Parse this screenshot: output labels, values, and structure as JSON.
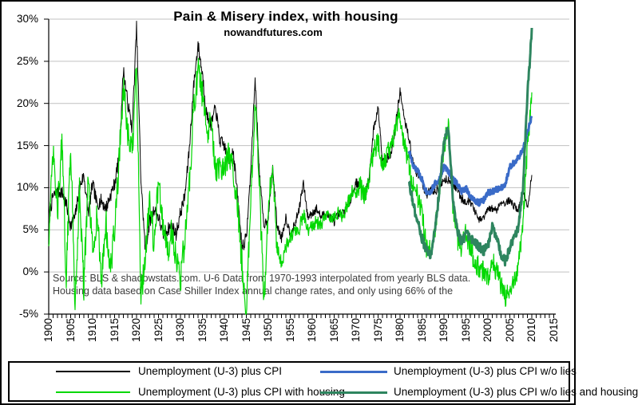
{
  "chart_data": {
    "type": "line",
    "title": "Pain & Misery index, with housing",
    "subtitle": "nowandfutures.com",
    "source_note": {
      "line1": "Source: BLS & shadowstats.com. U-6 Data from 1970-1993 interpolated from yearly BLS data.",
      "line2": "Housing data based on Case Shiller Index annual change rates, and only using 66% of the"
    },
    "x_axis": {
      "min_year": 1900,
      "max_year": 2015,
      "minor_tick_interval_years": 1,
      "label_interval_years": 5,
      "label_rotation_deg": -90,
      "tick_labels": [
        "1900",
        "1905",
        "1910",
        "1915",
        "1920",
        "1925",
        "1930",
        "1935",
        "1940",
        "1945",
        "1950",
        "1955",
        "1960",
        "1965",
        "1970",
        "1975",
        "1980",
        "1985",
        "1990",
        "1995",
        "2000",
        "2005",
        "2010",
        "2015"
      ]
    },
    "y_axis": {
      "unit": "%",
      "min": -5,
      "max": 30,
      "tick_labels": [
        "30%",
        "25%",
        "20%",
        "15%",
        "10%",
        "5%",
        "0%",
        "-5%"
      ],
      "tick_values": [
        30,
        25,
        20,
        15,
        10,
        5,
        0,
        -5
      ]
    },
    "grid": {
      "show": true,
      "color": "#c0c0c0"
    },
    "legend_position": "bottom",
    "series": [
      {
        "name": "Unemployment (U-3) plus CPI",
        "color": "#000000",
        "line_width": 1,
        "start_year": 1900,
        "interval_years": 1,
        "values": [
          6.5,
          9,
          9.5,
          9.5,
          8,
          5.5,
          6.5,
          10,
          11.5,
          7,
          10.5,
          8,
          8.5,
          7.5,
          9,
          10.5,
          13.5,
          24,
          20,
          17,
          29,
          11,
          2.5,
          6,
          7.5,
          6.5,
          4.5,
          5,
          5.5,
          4.5,
          7,
          9,
          14.5,
          22,
          27,
          23.5,
          18.5,
          17.5,
          19.5,
          15.5,
          15,
          13,
          14.5,
          9,
          3,
          4,
          12,
          23,
          11.5,
          5.5,
          6.5,
          12.5,
          5.5,
          4,
          6.5,
          4.5,
          5.5,
          7.5,
          10.5,
          6.5,
          7,
          7.5,
          6.5,
          7,
          6.5,
          6,
          6.8,
          7,
          7.8,
          9,
          10.6,
          10.3,
          8.8,
          11.5,
          17,
          19.5,
          13.5,
          13.5,
          14,
          17.5,
          21.5,
          18,
          16,
          12.8,
          11.5,
          10.8,
          9,
          9.8,
          9.6,
          10.1,
          11,
          11,
          10.5,
          9.9,
          8.7,
          8.4,
          8.4,
          7.2,
          6.1,
          6.4,
          7.4,
          7.5,
          7.4,
          8.3,
          8.2,
          8.5,
          7.8,
          7.4,
          9.8,
          7.5,
          11.5
        ]
      },
      {
        "name": "Unemployment (U-3) plus CPI with housing",
        "color": "#00d800",
        "line_width": 1.2,
        "start_year": 1900,
        "interval_years": 1,
        "values": [
          4,
          14,
          7,
          15.5,
          -1,
          15.5,
          -4,
          10,
          -2,
          11,
          2,
          7,
          -1,
          6,
          0,
          5,
          13,
          22,
          16,
          14,
          24,
          -3,
          2,
          9,
          3,
          11,
          6,
          2,
          5,
          2,
          -1,
          4,
          10,
          19,
          24,
          21,
          16,
          18,
          12,
          12,
          12,
          14,
          12,
          8,
          1,
          -4.5,
          8,
          20,
          10,
          -4,
          8,
          12,
          3,
          1,
          3,
          4,
          5,
          5,
          7,
          5,
          5.5,
          6,
          5.5,
          6.5,
          6.5,
          6.5,
          7,
          6.5,
          8,
          9.5,
          9.5,
          10,
          9,
          11.5,
          14.5,
          15.5,
          12.5,
          14,
          15,
          17,
          18.5,
          15,
          13,
          10,
          9,
          7,
          3,
          2.5,
          5,
          10,
          15,
          17.5,
          8,
          4,
          3,
          4.5,
          3,
          1,
          0.5,
          0,
          -0.5,
          1.5,
          0,
          -1.5,
          -3,
          -2.5,
          -1,
          1,
          6,
          15,
          21
        ]
      },
      {
        "name": "Unemployment (U-3) plus CPI w/o lies",
        "color": "#3a6bc8",
        "line_width": 3,
        "start_year": 1982,
        "interval_years": 1,
        "values": [
          14.5,
          12.5,
          12,
          11,
          9.5,
          9.5,
          10.5,
          11,
          12.5,
          12,
          11,
          10.5,
          9.5,
          10,
          9,
          8.5,
          8.2,
          8.5,
          9.4,
          9.5,
          9.8,
          10,
          10.5,
          12.5,
          13,
          13.5,
          14.5,
          16.5,
          18.5
        ]
      },
      {
        "name": "Unemployment (U-3) plus CPI w/o lies and housing",
        "color": "#2e855f",
        "line_width": 3,
        "start_year": 1982,
        "interval_years": 1,
        "values": [
          11,
          8,
          6,
          4,
          2.5,
          2,
          5,
          10,
          15.5,
          17,
          9,
          5,
          3.5,
          4.5,
          4,
          3.5,
          3,
          2.5,
          3,
          5.5,
          4,
          2,
          1.2,
          3,
          4,
          5.5,
          10,
          21,
          28.5
        ]
      }
    ]
  }
}
